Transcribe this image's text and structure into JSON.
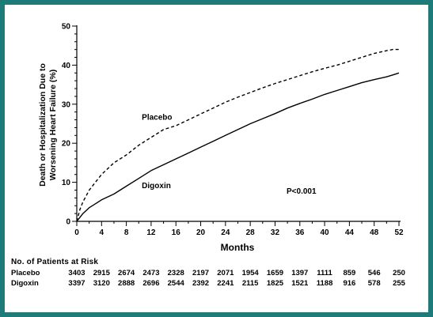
{
  "chart_data": {
    "type": "line",
    "title": "",
    "ylabel": "Death or Hospitalization Due to Worsening Heart Failure (%)",
    "xlabel": "Months",
    "xlim": [
      0,
      52
    ],
    "ylim": [
      0,
      50
    ],
    "x_ticks": [
      0,
      4,
      8,
      12,
      16,
      20,
      24,
      28,
      32,
      36,
      40,
      44,
      48,
      52
    ],
    "y_ticks": [
      0,
      10,
      20,
      30,
      40,
      50
    ],
    "annotation": "P<0.001",
    "series": [
      {
        "name": "Placebo",
        "style": "dashed",
        "x": [
          0,
          0.5,
          1,
          2,
          3,
          4,
          6,
          8,
          10,
          12,
          14,
          16,
          18,
          20,
          22,
          24,
          26,
          28,
          30,
          32,
          34,
          36,
          38,
          40,
          42,
          44,
          46,
          48,
          50,
          51,
          52
        ],
        "y": [
          0,
          3,
          5,
          8,
          10,
          12,
          15,
          17,
          19.5,
          21.5,
          23.5,
          24.5,
          26,
          27.5,
          29,
          30.5,
          31.8,
          33,
          34.2,
          35.3,
          36.3,
          37.3,
          38.3,
          39.2,
          40,
          41,
          42,
          43,
          43.7,
          44,
          44
        ]
      },
      {
        "name": "Digoxin",
        "style": "solid",
        "x": [
          0,
          0.5,
          1,
          2,
          3,
          4,
          6,
          8,
          10,
          12,
          14,
          16,
          18,
          20,
          22,
          24,
          26,
          28,
          30,
          32,
          34,
          36,
          38,
          40,
          42,
          44,
          46,
          48,
          50,
          51,
          52
        ],
        "y": [
          0,
          1,
          2,
          3.5,
          4.5,
          5.5,
          7,
          9,
          11,
          13,
          14.5,
          16,
          17.5,
          19,
          20.5,
          22,
          23.5,
          25,
          26.3,
          27.6,
          29,
          30.2,
          31.3,
          32.5,
          33.5,
          34.5,
          35.5,
          36.3,
          37,
          37.5,
          38
        ]
      }
    ],
    "series_labels": [
      {
        "name": "Placebo",
        "x": 10.5,
        "y": 26
      },
      {
        "name": "Digoxin",
        "x": 10.5,
        "y": 8.5
      }
    ]
  },
  "risk_table": {
    "title": "No. of Patients at Risk",
    "rows": [
      {
        "label": "Placebo",
        "values": [
          "3403",
          "2915",
          "2674",
          "2473",
          "2328",
          "2197",
          "2071",
          "1954",
          "1659",
          "1397",
          "1111",
          "859",
          "546",
          "250"
        ]
      },
      {
        "label": "Digoxin",
        "values": [
          "3397",
          "3120",
          "2888",
          "2696",
          "2544",
          "2392",
          "2241",
          "2115",
          "1825",
          "1521",
          "1188",
          "916",
          "578",
          "255"
        ]
      }
    ]
  }
}
